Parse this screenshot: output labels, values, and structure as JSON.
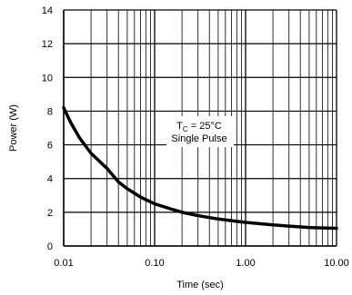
{
  "chart_data": {
    "type": "line",
    "title": "",
    "xlabel": "Time (sec)",
    "ylabel": "Power  (W)",
    "x_scale": "log",
    "xlim": [
      0.01,
      10.0
    ],
    "ylim": [
      0,
      14
    ],
    "grid": true,
    "x_tick_labels": [
      "0.01",
      "0.10",
      "1.00",
      "10.00"
    ],
    "y_tick_labels": [
      "0",
      "2",
      "4",
      "6",
      "8",
      "10",
      "12",
      "14"
    ],
    "annotation": {
      "line1_main": "T",
      "line1_sub": "C",
      "line1_rest": " = 25°C",
      "line2": "Single Pulse"
    },
    "series": [
      {
        "x": [
          0.01,
          0.012,
          0.015,
          0.02,
          0.025,
          0.03,
          0.04,
          0.05,
          0.07,
          0.1,
          0.15,
          0.2,
          0.3,
          0.5,
          0.7,
          1.0,
          2.0,
          3.0,
          5.0,
          7.0,
          10.0
        ],
        "values": [
          8.2,
          7.3,
          6.4,
          5.5,
          5.0,
          4.6,
          3.8,
          3.4,
          2.9,
          2.5,
          2.2,
          2.0,
          1.8,
          1.6,
          1.5,
          1.4,
          1.25,
          1.18,
          1.1,
          1.07,
          1.05
        ]
      }
    ]
  }
}
